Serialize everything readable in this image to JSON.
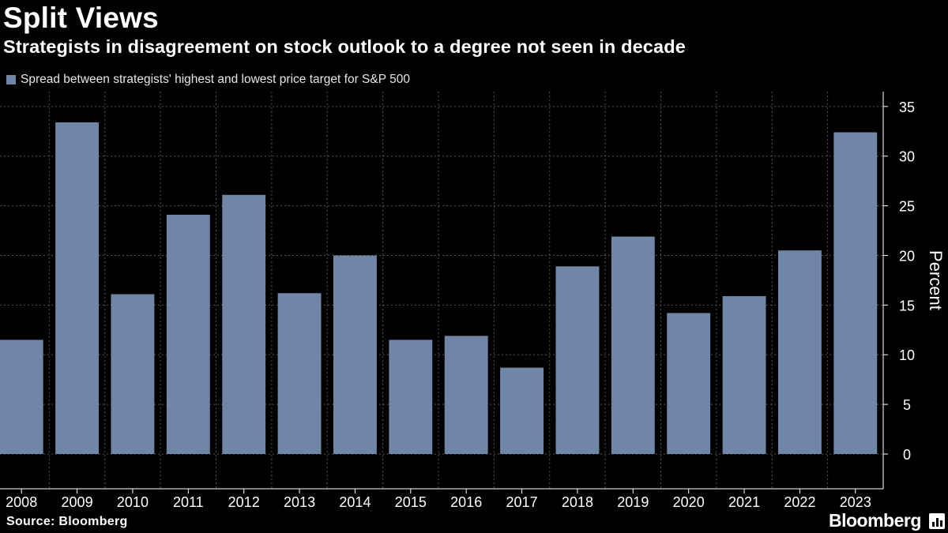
{
  "header": {
    "title": "Split Views",
    "subtitle": "Strategists in disagreement on stock outlook to a degree not seen in decade"
  },
  "legend": {
    "label": "Spread between strategists' highest and lowest price target for S&P 500"
  },
  "footer": {
    "source": "Source: Bloomberg",
    "brand": "Bloomberg"
  },
  "colors": {
    "background": "#000000",
    "bar": "#7086a7",
    "grid": "#555555",
    "text": "#ffffff"
  },
  "chart_data": {
    "type": "bar",
    "title": "Split Views",
    "subtitle": "Strategists in disagreement on stock outlook to a degree not seen in decade",
    "categories": [
      "2008",
      "2009",
      "2010",
      "2011",
      "2012",
      "2013",
      "2014",
      "2015",
      "2016",
      "2017",
      "2018",
      "2019",
      "2020",
      "2021",
      "2022",
      "2023"
    ],
    "series": [
      {
        "name": "Spread between strategists' highest and lowest price target for S&P 500",
        "values": [
          11.5,
          33.4,
          16.1,
          24.1,
          26.1,
          16.2,
          20.0,
          11.5,
          11.9,
          8.7,
          18.9,
          21.9,
          14.2,
          15.9,
          20.5,
          32.4
        ]
      }
    ],
    "xlabel": "",
    "ylabel": "Percent",
    "ylim": [
      -3.5,
      36.5
    ],
    "yticks": [
      0,
      5,
      10,
      15,
      20,
      25,
      30,
      35
    ],
    "grid": true,
    "legend_position": "top-left"
  }
}
